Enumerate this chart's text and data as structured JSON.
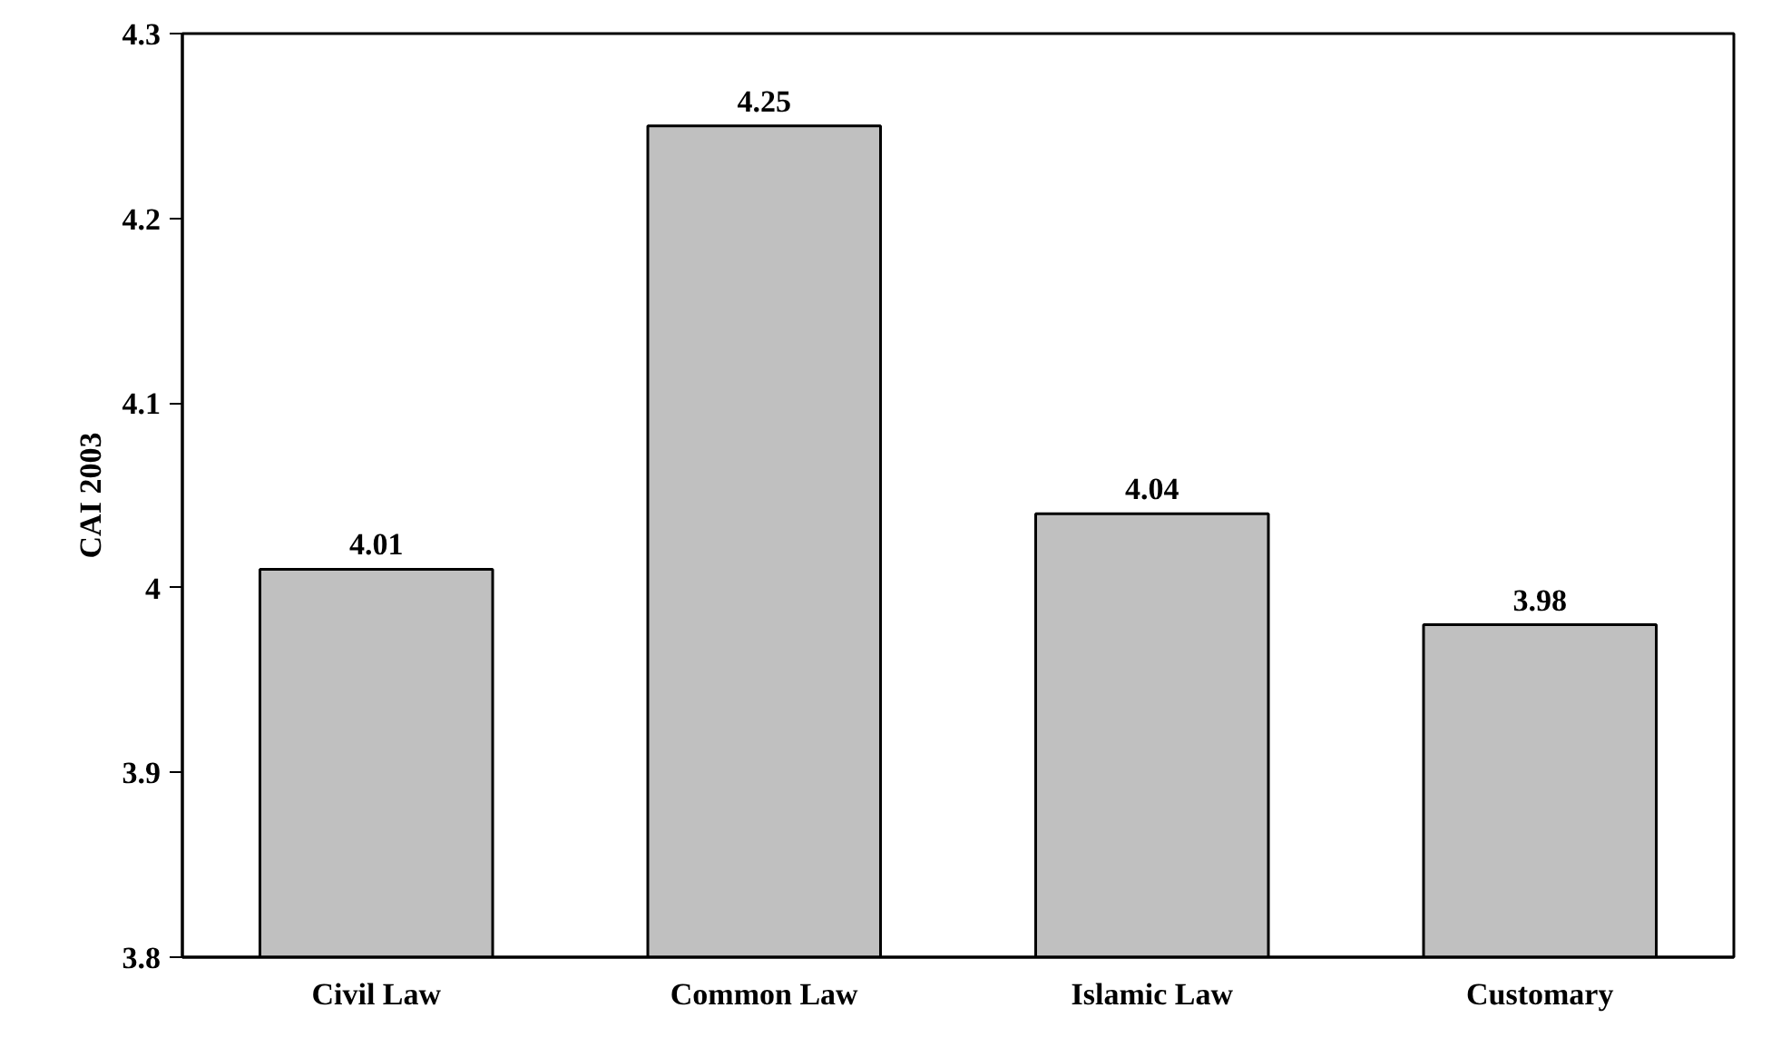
{
  "chart_data": {
    "type": "bar",
    "ylabel": "CAI 2003",
    "categories": [
      "Civil Law",
      "Common Law",
      "Islamic Law",
      "Customary"
    ],
    "values": [
      4.01,
      4.25,
      4.04,
      3.98
    ],
    "color": "#c0c0c0",
    "ylim": [
      3.8,
      4.3
    ],
    "yticks": [
      3.8,
      3.9,
      {
        "value": 4.0,
        "label": "4"
      },
      4.1,
      4.2,
      4.3
    ],
    "data_labels": true,
    "grid": false
  }
}
